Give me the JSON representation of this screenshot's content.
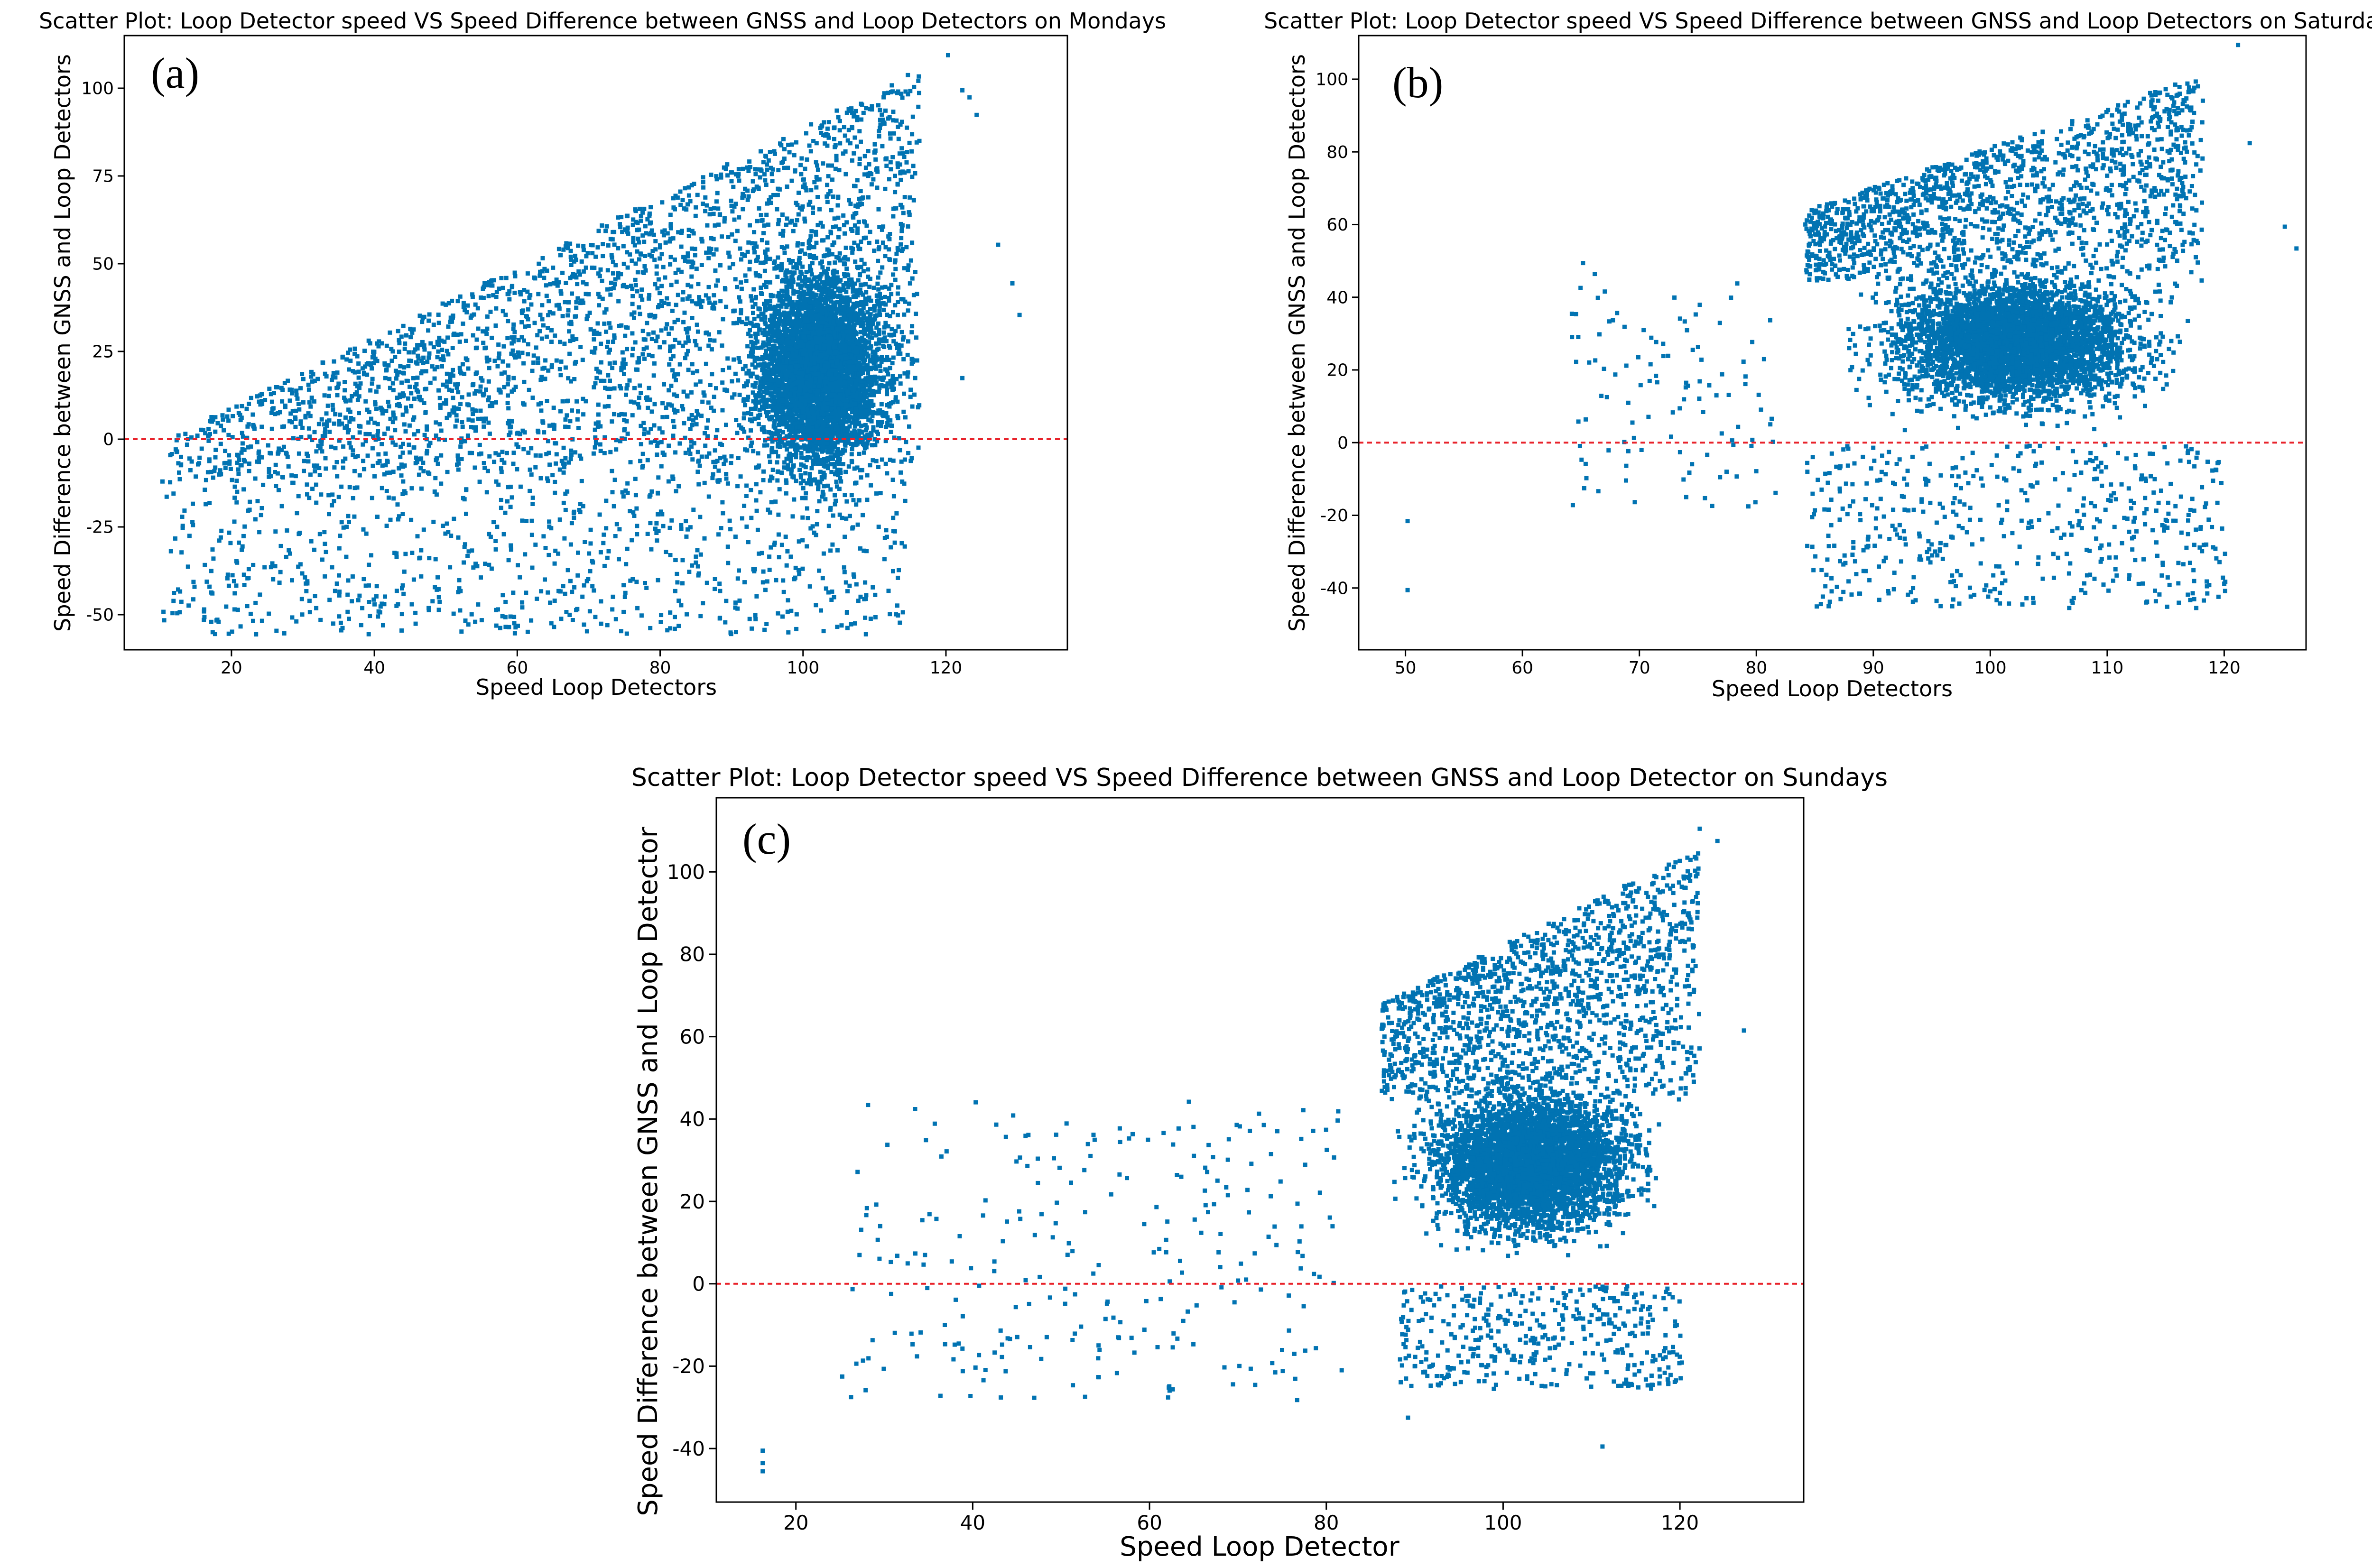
{
  "figure": {
    "description_free": true
  },
  "chart_data": [
    {
      "type": "scatter",
      "panel_label": "(a)",
      "title": "Scatter Plot: Loop Detector speed VS Speed Difference between GNSS and Loop Detectors on Mondays",
      "xlabel": "Speed Loop Detectors",
      "ylabel": "Speed Difference between GNSS and Loop Detectors",
      "xlim": [
        5,
        137
      ],
      "ylim": [
        -60,
        115
      ],
      "xticks": [
        20,
        40,
        60,
        80,
        100,
        120
      ],
      "yticks": [
        -50,
        -25,
        0,
        25,
        50,
        75,
        100
      ],
      "reference_line": {
        "y": 0,
        "color": "#e8232b",
        "style": "dashed"
      },
      "point_color": "#0173b2",
      "point_cloud": [
        {
          "n": 2600,
          "x": [
            10,
            116
          ],
          "y_lo": "-12 + 0.05*x",
          "y_hi": "x - 10",
          "skew": 1.6
        },
        {
          "n": 4200,
          "x": [
            82,
            116
          ],
          "y": [
            -40,
            70
          ],
          "center": [
            102,
            20
          ]
        },
        {
          "n": 900,
          "x": [
            10,
            114
          ],
          "y": [
            -55,
            -3
          ],
          "density": "sparse"
        }
      ],
      "outliers": [
        [
          122,
          100
        ],
        [
          123,
          98
        ],
        [
          124,
          93
        ],
        [
          127,
          56
        ],
        [
          129,
          45
        ],
        [
          130,
          36
        ],
        [
          122,
          18
        ],
        [
          120,
          110
        ]
      ]
    },
    {
      "type": "scatter",
      "panel_label": "(b)",
      "title": "Scatter Plot: Loop Detector speed VS Speed Difference between GNSS and Loop Detectors on Saturdays",
      "xlabel": "Speed Loop Detectors",
      "ylabel": "Speed Difference between GNSS and Loop Detectors",
      "xlim": [
        46,
        127
      ],
      "ylim": [
        -57,
        112
      ],
      "xticks": [
        50,
        60,
        70,
        80,
        90,
        100,
        110,
        120
      ],
      "yticks": [
        -40,
        -20,
        0,
        20,
        40,
        60,
        80,
        100
      ],
      "reference_line": {
        "y": 0,
        "color": "#e8232b",
        "style": "dashed"
      },
      "point_color": "#0173b2",
      "point_cloud": [
        {
          "n": 4200,
          "x": [
            82,
            122
          ],
          "y": [
            -10,
            55
          ],
          "center": [
            102,
            28
          ]
        },
        {
          "n": 1500,
          "x": [
            84,
            118
          ],
          "y_lo": "45",
          "y_hi": "1.1*x - 28",
          "density": "medium"
        },
        {
          "n": 500,
          "x": [
            84,
            120
          ],
          "y": [
            -45,
            0
          ],
          "density": "sparse"
        },
        {
          "n": 110,
          "x": [
            64,
            82
          ],
          "y": [
            -18,
            45
          ],
          "density": "sparse"
        }
      ],
      "outliers": [
        [
          50,
          -21
        ],
        [
          50,
          -40
        ],
        [
          65,
          50
        ],
        [
          66,
          47
        ],
        [
          121,
          110
        ],
        [
          122,
          83
        ],
        [
          125,
          60
        ],
        [
          126,
          54
        ]
      ]
    },
    {
      "type": "scatter",
      "panel_label": "(c)",
      "title": "Scatter Plot: Loop Detector speed VS Speed Difference between GNSS and Loop Detector on Sundays",
      "xlabel": "Speed Loop Detector",
      "ylabel": "Speed Difference between GNSS and Loop Detector",
      "xlim": [
        11,
        134
      ],
      "ylim": [
        -53,
        118
      ],
      "xticks": [
        20,
        40,
        60,
        80,
        100,
        120
      ],
      "yticks": [
        -40,
        -20,
        0,
        20,
        40,
        60,
        80,
        100
      ],
      "reference_line": {
        "y": 0,
        "color": "#e8232b",
        "style": "dashed"
      },
      "point_color": "#0173b2",
      "point_cloud": [
        {
          "n": 4200,
          "x": [
            82,
            124
          ],
          "y": [
            -10,
            55
          ],
          "center": [
            103,
            30
          ]
        },
        {
          "n": 1400,
          "x": [
            86,
            122
          ],
          "y_lo": "45",
          "y_hi": "1.05*x - 22",
          "density": "medium"
        },
        {
          "n": 400,
          "x": [
            88,
            120
          ],
          "y": [
            -25,
            0
          ],
          "density": "sparse"
        },
        {
          "n": 260,
          "x": [
            26,
            82
          ],
          "y": [
            -28,
            45
          ],
          "density": "sparse"
        }
      ],
      "outliers": [
        [
          16,
          -40
        ],
        [
          16,
          -43
        ],
        [
          16,
          -45
        ],
        [
          25,
          -22
        ],
        [
          26,
          -27
        ],
        [
          89,
          -32
        ],
        [
          111,
          -39
        ],
        [
          122,
          111
        ],
        [
          124,
          108
        ],
        [
          127,
          62
        ]
      ]
    }
  ]
}
